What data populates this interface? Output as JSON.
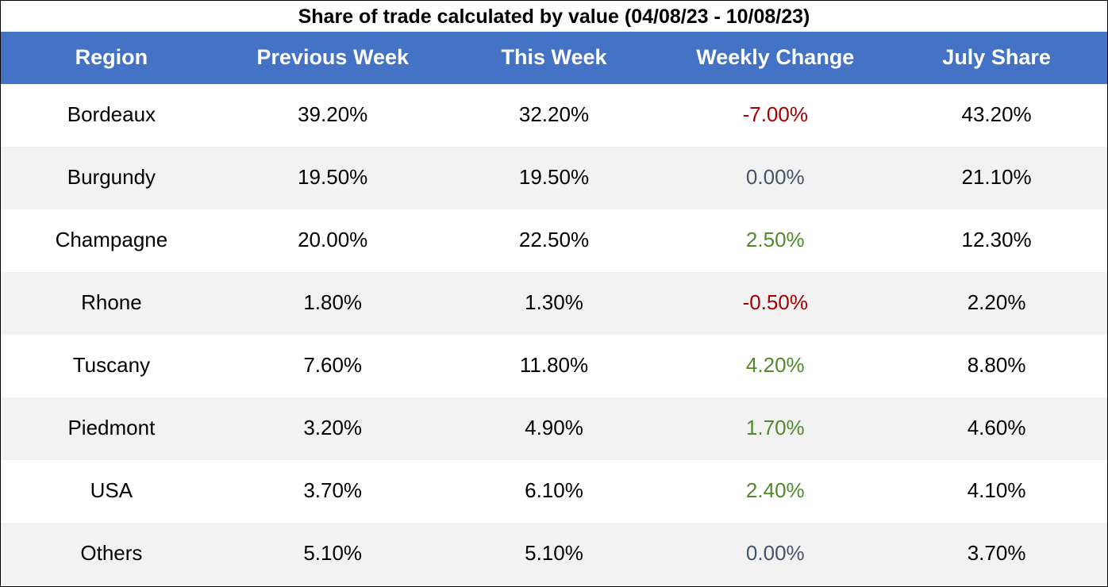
{
  "chart_data": {
    "type": "table",
    "title": "Share of trade calculated by value (04/08/23 - 10/08/23)",
    "columns": [
      "Region",
      "Previous Week",
      "This Week",
      "Weekly Change",
      "July Share"
    ],
    "rows": [
      {
        "region": "Bordeaux",
        "previous_week": "39.20%",
        "this_week": "32.20%",
        "weekly_change": "-7.00%",
        "july_share": "43.20%"
      },
      {
        "region": "Burgundy",
        "previous_week": "19.50%",
        "this_week": "19.50%",
        "weekly_change": "0.00%",
        "july_share": "21.10%"
      },
      {
        "region": "Champagne",
        "previous_week": "20.00%",
        "this_week": "22.50%",
        "weekly_change": "2.50%",
        "july_share": "12.30%"
      },
      {
        "region": "Rhone",
        "previous_week": "1.80%",
        "this_week": "1.30%",
        "weekly_change": "-0.50%",
        "july_share": "2.20%"
      },
      {
        "region": "Tuscany",
        "previous_week": "7.60%",
        "this_week": "11.80%",
        "weekly_change": "4.20%",
        "july_share": "8.80%"
      },
      {
        "region": "Piedmont",
        "previous_week": "3.20%",
        "this_week": "4.90%",
        "weekly_change": "1.70%",
        "july_share": "4.60%"
      },
      {
        "region": "USA",
        "previous_week": "3.70%",
        "this_week": "6.10%",
        "weekly_change": "2.40%",
        "july_share": "4.10%"
      },
      {
        "region": "Others",
        "previous_week": "5.10%",
        "this_week": "5.10%",
        "weekly_change": "0.00%",
        "july_share": "3.70%"
      }
    ]
  },
  "colors": {
    "header_background": "#4472c4",
    "header_text": "#ffffff",
    "row_stripe": "#f2f2f2",
    "row_background": "#ffffff",
    "change_negative": "#a50000",
    "change_positive": "#4f8a2b",
    "change_zero": "#44546a"
  }
}
